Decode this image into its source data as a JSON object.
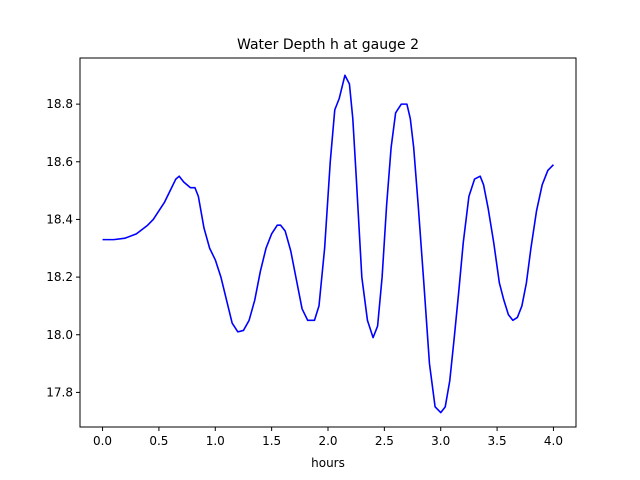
{
  "chart_data": {
    "type": "line",
    "title": "Water Depth h at gauge 2",
    "xlabel": "hours",
    "ylabel": "",
    "xlim": [
      -0.2,
      4.2
    ],
    "ylim": [
      17.68,
      18.96
    ],
    "xticks": [
      0.0,
      0.5,
      1.0,
      1.5,
      2.0,
      2.5,
      3.0,
      3.5,
      4.0
    ],
    "xtick_labels": [
      "0.0",
      "0.5",
      "1.0",
      "1.5",
      "2.0",
      "2.5",
      "3.0",
      "3.5",
      "4.0"
    ],
    "yticks": [
      17.8,
      18.0,
      18.2,
      18.4,
      18.6,
      18.8
    ],
    "ytick_labels": [
      "17.8",
      "18.0",
      "18.2",
      "18.4",
      "18.6",
      "18.8"
    ],
    "grid": false,
    "series": [
      {
        "color": "#0000ff",
        "x": [
          0.0,
          0.1,
          0.2,
          0.3,
          0.4,
          0.45,
          0.5,
          0.55,
          0.6,
          0.65,
          0.68,
          0.72,
          0.78,
          0.82,
          0.85,
          0.9,
          0.95,
          1.0,
          1.05,
          1.1,
          1.15,
          1.2,
          1.25,
          1.3,
          1.35,
          1.4,
          1.45,
          1.5,
          1.55,
          1.58,
          1.62,
          1.67,
          1.72,
          1.77,
          1.82,
          1.88,
          1.92,
          1.97,
          2.02,
          2.06,
          2.1,
          2.15,
          2.19,
          2.22,
          2.25,
          2.3,
          2.35,
          2.4,
          2.44,
          2.48,
          2.52,
          2.56,
          2.6,
          2.65,
          2.7,
          2.73,
          2.76,
          2.8,
          2.85,
          2.9,
          2.95,
          3.0,
          3.04,
          3.08,
          3.12,
          3.16,
          3.2,
          3.25,
          3.3,
          3.35,
          3.38,
          3.42,
          3.47,
          3.52,
          3.56,
          3.6,
          3.64,
          3.68,
          3.72,
          3.76,
          3.8,
          3.85,
          3.9,
          3.95,
          4.0
        ],
        "y": [
          18.33,
          18.33,
          18.335,
          18.35,
          18.38,
          18.4,
          18.43,
          18.46,
          18.5,
          18.54,
          18.55,
          18.53,
          18.51,
          18.51,
          18.48,
          18.37,
          18.3,
          18.26,
          18.2,
          18.12,
          18.04,
          18.01,
          18.015,
          18.05,
          18.12,
          18.22,
          18.3,
          18.35,
          18.38,
          18.38,
          18.36,
          18.29,
          18.19,
          18.09,
          18.05,
          18.05,
          18.1,
          18.3,
          18.6,
          18.78,
          18.82,
          18.9,
          18.87,
          18.75,
          18.55,
          18.2,
          18.05,
          17.99,
          18.03,
          18.2,
          18.45,
          18.65,
          18.77,
          18.8,
          18.8,
          18.75,
          18.65,
          18.45,
          18.18,
          17.9,
          17.75,
          17.73,
          17.75,
          17.84,
          17.99,
          18.15,
          18.32,
          18.48,
          18.54,
          18.55,
          18.52,
          18.44,
          18.32,
          18.18,
          18.12,
          18.07,
          18.05,
          18.06,
          18.1,
          18.18,
          18.3,
          18.43,
          18.52,
          18.57,
          18.59
        ]
      }
    ]
  }
}
